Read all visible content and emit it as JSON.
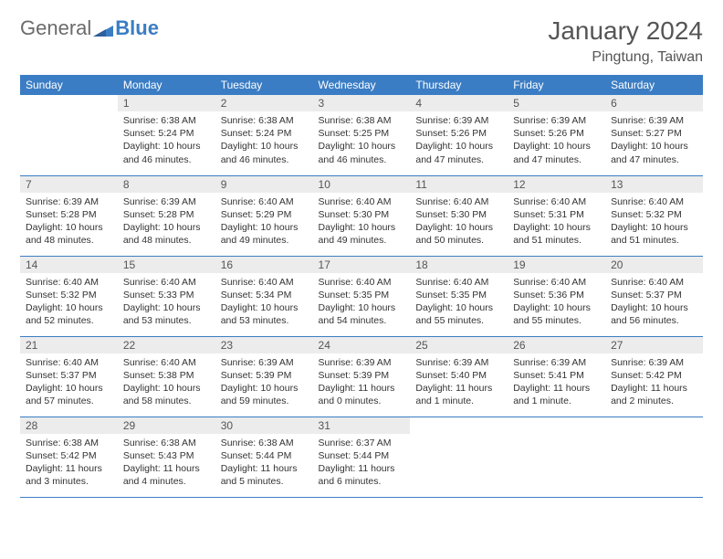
{
  "brand": {
    "part1": "General",
    "part2": "Blue"
  },
  "title": "January 2024",
  "location": "Pingtung, Taiwan",
  "colors": {
    "header_bg": "#3b7dc4",
    "header_text": "#ffffff",
    "daynum_bg": "#ececec",
    "border": "#3b7dc4",
    "body_text": "#333333",
    "title_text": "#555555",
    "logo_gray": "#6b6b6b",
    "logo_blue": "#3b7dc4"
  },
  "days_of_week": [
    "Sunday",
    "Monday",
    "Tuesday",
    "Wednesday",
    "Thursday",
    "Friday",
    "Saturday"
  ],
  "first_day_index": 1,
  "days": [
    {
      "n": "1",
      "sunrise": "6:38 AM",
      "sunset": "5:24 PM",
      "daylight": "10 hours and 46 minutes."
    },
    {
      "n": "2",
      "sunrise": "6:38 AM",
      "sunset": "5:24 PM",
      "daylight": "10 hours and 46 minutes."
    },
    {
      "n": "3",
      "sunrise": "6:38 AM",
      "sunset": "5:25 PM",
      "daylight": "10 hours and 46 minutes."
    },
    {
      "n": "4",
      "sunrise": "6:39 AM",
      "sunset": "5:26 PM",
      "daylight": "10 hours and 47 minutes."
    },
    {
      "n": "5",
      "sunrise": "6:39 AM",
      "sunset": "5:26 PM",
      "daylight": "10 hours and 47 minutes."
    },
    {
      "n": "6",
      "sunrise": "6:39 AM",
      "sunset": "5:27 PM",
      "daylight": "10 hours and 47 minutes."
    },
    {
      "n": "7",
      "sunrise": "6:39 AM",
      "sunset": "5:28 PM",
      "daylight": "10 hours and 48 minutes."
    },
    {
      "n": "8",
      "sunrise": "6:39 AM",
      "sunset": "5:28 PM",
      "daylight": "10 hours and 48 minutes."
    },
    {
      "n": "9",
      "sunrise": "6:40 AM",
      "sunset": "5:29 PM",
      "daylight": "10 hours and 49 minutes."
    },
    {
      "n": "10",
      "sunrise": "6:40 AM",
      "sunset": "5:30 PM",
      "daylight": "10 hours and 49 minutes."
    },
    {
      "n": "11",
      "sunrise": "6:40 AM",
      "sunset": "5:30 PM",
      "daylight": "10 hours and 50 minutes."
    },
    {
      "n": "12",
      "sunrise": "6:40 AM",
      "sunset": "5:31 PM",
      "daylight": "10 hours and 51 minutes."
    },
    {
      "n": "13",
      "sunrise": "6:40 AM",
      "sunset": "5:32 PM",
      "daylight": "10 hours and 51 minutes."
    },
    {
      "n": "14",
      "sunrise": "6:40 AM",
      "sunset": "5:32 PM",
      "daylight": "10 hours and 52 minutes."
    },
    {
      "n": "15",
      "sunrise": "6:40 AM",
      "sunset": "5:33 PM",
      "daylight": "10 hours and 53 minutes."
    },
    {
      "n": "16",
      "sunrise": "6:40 AM",
      "sunset": "5:34 PM",
      "daylight": "10 hours and 53 minutes."
    },
    {
      "n": "17",
      "sunrise": "6:40 AM",
      "sunset": "5:35 PM",
      "daylight": "10 hours and 54 minutes."
    },
    {
      "n": "18",
      "sunrise": "6:40 AM",
      "sunset": "5:35 PM",
      "daylight": "10 hours and 55 minutes."
    },
    {
      "n": "19",
      "sunrise": "6:40 AM",
      "sunset": "5:36 PM",
      "daylight": "10 hours and 55 minutes."
    },
    {
      "n": "20",
      "sunrise": "6:40 AM",
      "sunset": "5:37 PM",
      "daylight": "10 hours and 56 minutes."
    },
    {
      "n": "21",
      "sunrise": "6:40 AM",
      "sunset": "5:37 PM",
      "daylight": "10 hours and 57 minutes."
    },
    {
      "n": "22",
      "sunrise": "6:40 AM",
      "sunset": "5:38 PM",
      "daylight": "10 hours and 58 minutes."
    },
    {
      "n": "23",
      "sunrise": "6:39 AM",
      "sunset": "5:39 PM",
      "daylight": "10 hours and 59 minutes."
    },
    {
      "n": "24",
      "sunrise": "6:39 AM",
      "sunset": "5:39 PM",
      "daylight": "11 hours and 0 minutes."
    },
    {
      "n": "25",
      "sunrise": "6:39 AM",
      "sunset": "5:40 PM",
      "daylight": "11 hours and 1 minute."
    },
    {
      "n": "26",
      "sunrise": "6:39 AM",
      "sunset": "5:41 PM",
      "daylight": "11 hours and 1 minute."
    },
    {
      "n": "27",
      "sunrise": "6:39 AM",
      "sunset": "5:42 PM",
      "daylight": "11 hours and 2 minutes."
    },
    {
      "n": "28",
      "sunrise": "6:38 AM",
      "sunset": "5:42 PM",
      "daylight": "11 hours and 3 minutes."
    },
    {
      "n": "29",
      "sunrise": "6:38 AM",
      "sunset": "5:43 PM",
      "daylight": "11 hours and 4 minutes."
    },
    {
      "n": "30",
      "sunrise": "6:38 AM",
      "sunset": "5:44 PM",
      "daylight": "11 hours and 5 minutes."
    },
    {
      "n": "31",
      "sunrise": "6:37 AM",
      "sunset": "5:44 PM",
      "daylight": "11 hours and 6 minutes."
    }
  ],
  "labels": {
    "sunrise": "Sunrise:",
    "sunset": "Sunset:",
    "daylight": "Daylight:"
  }
}
